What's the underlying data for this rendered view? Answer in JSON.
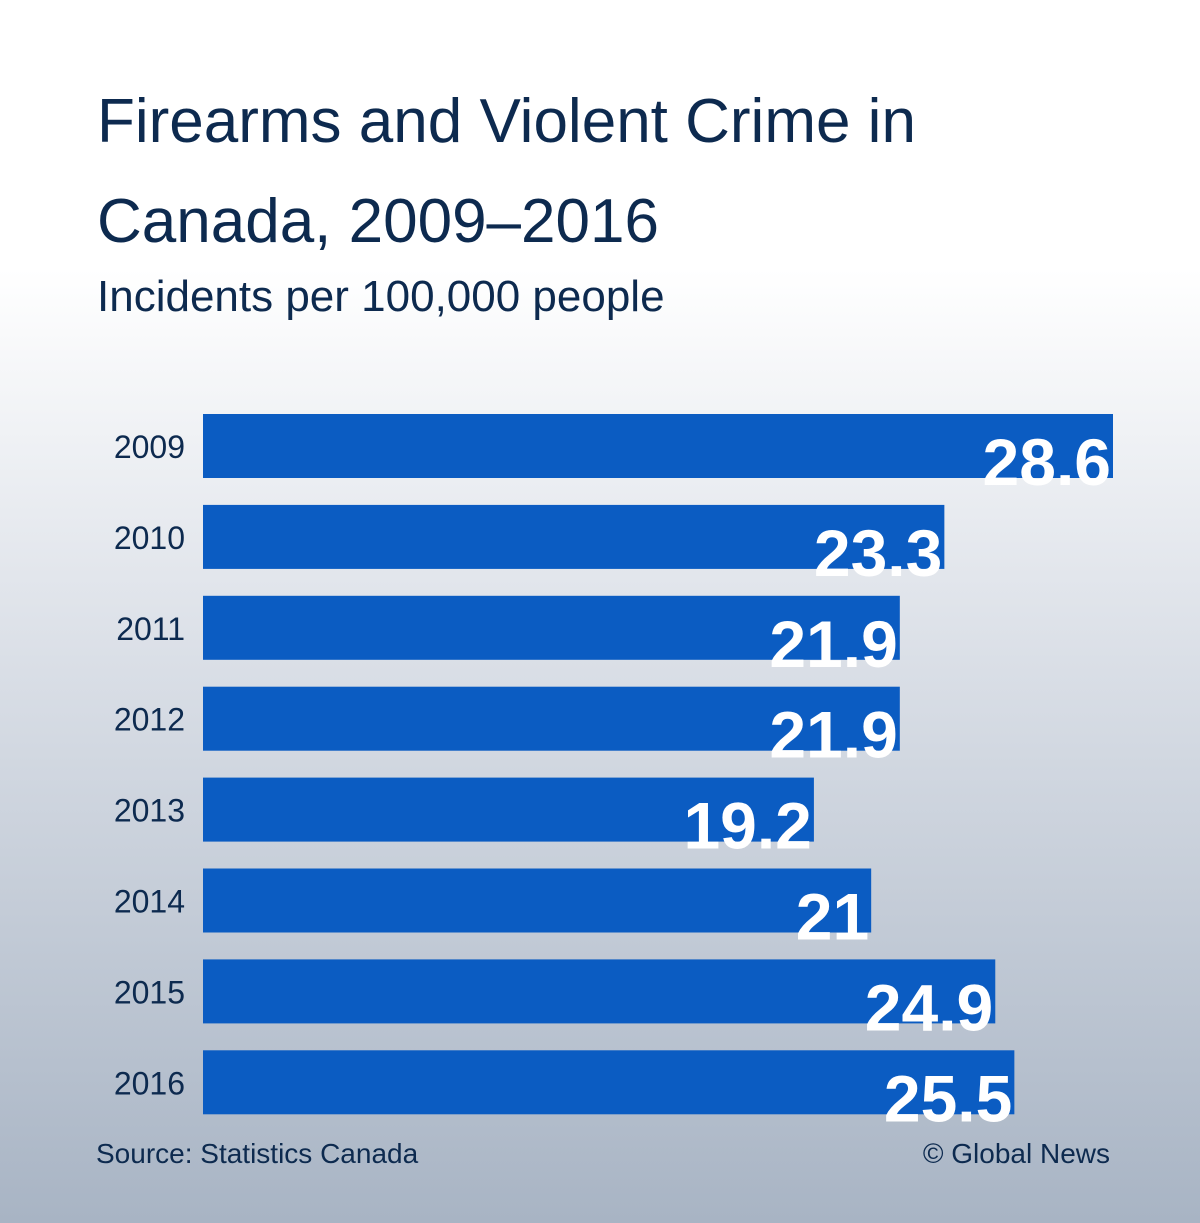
{
  "chart_data": {
    "type": "bar",
    "orientation": "horizontal",
    "title": "Firearms and Violent Crime in Canada, 2009–2016",
    "subtitle": "Incidents per 100,000 people",
    "categories": [
      "2009",
      "2010",
      "2011",
      "2012",
      "2013",
      "2014",
      "2015",
      "2016"
    ],
    "values": [
      28.6,
      23.3,
      21.9,
      21.9,
      19.2,
      21,
      24.9,
      25.5
    ],
    "color": "#0b5cc2",
    "source": "Source: Statistics Canada",
    "credit": "© Global News"
  }
}
